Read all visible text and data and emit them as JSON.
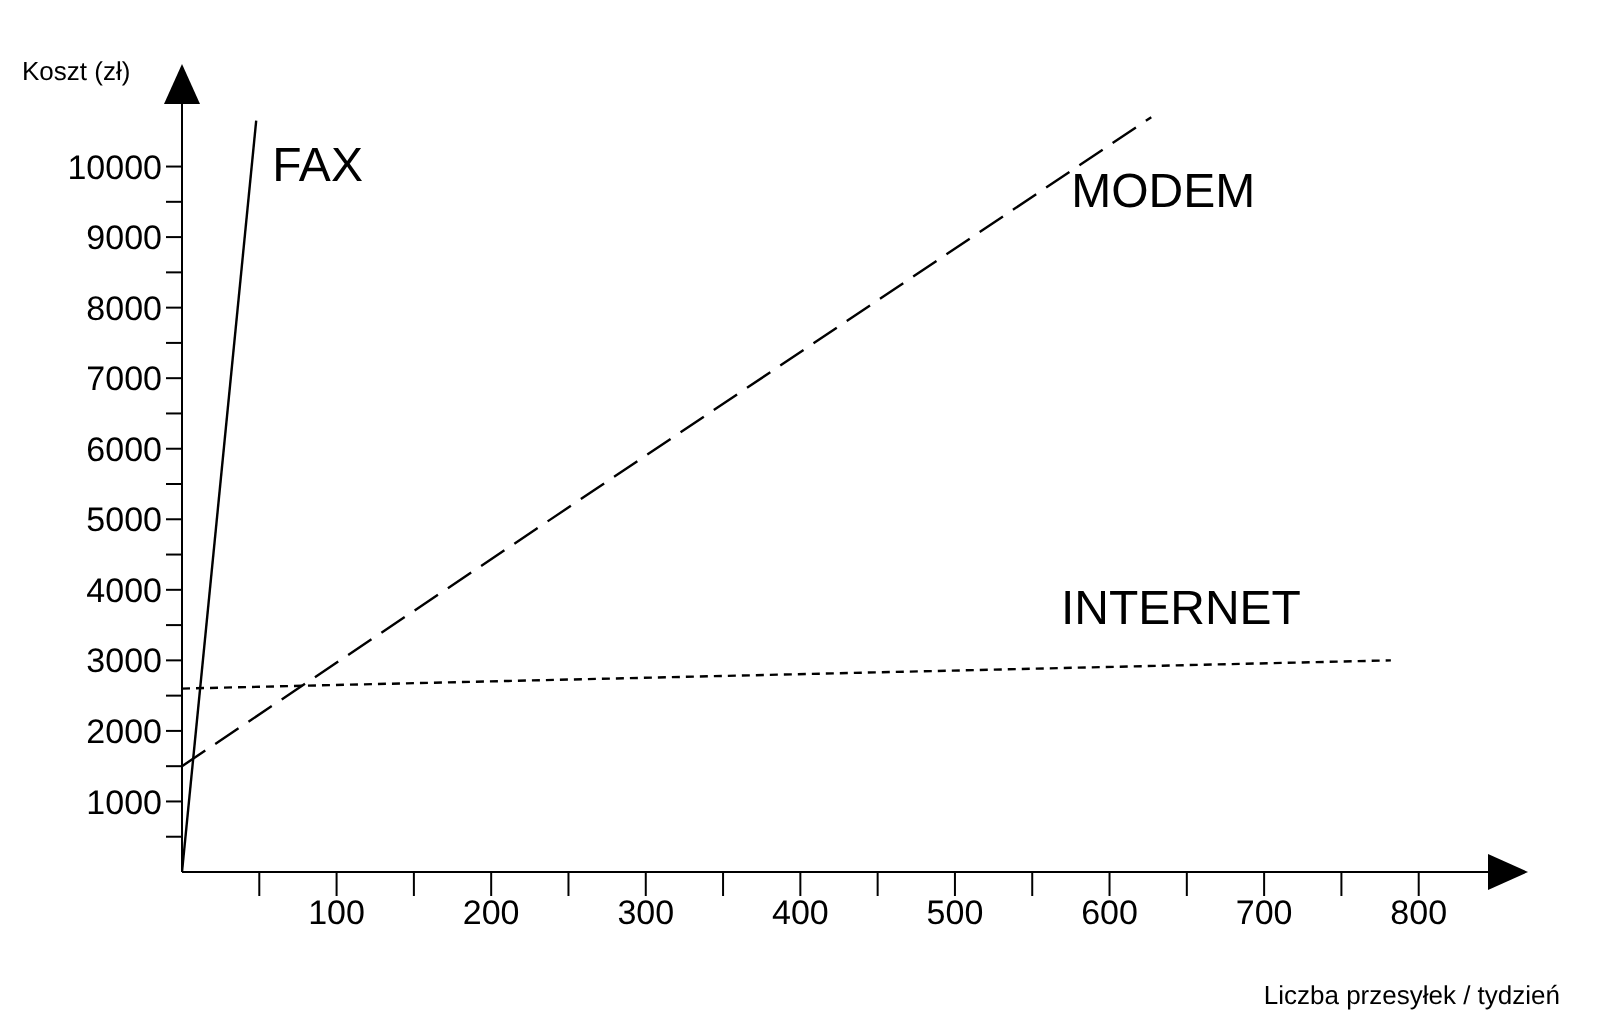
{
  "chart_data": {
    "type": "line",
    "xlabel": "Liczba przesyłek / tydzień",
    "ylabel": "Koszt (zł)",
    "xlim": [
      0,
      850
    ],
    "ylim": [
      0,
      11000
    ],
    "xticks": [
      {
        "value": 50,
        "label": null
      },
      100,
      {
        "value": 150,
        "label": null
      },
      200,
      {
        "value": 250,
        "label": null
      },
      300,
      {
        "value": 350,
        "label": null
      },
      400,
      {
        "value": 450,
        "label": null
      },
      500,
      {
        "value": 550,
        "label": null
      },
      600,
      {
        "value": 650,
        "label": null
      },
      700,
      {
        "value": 750,
        "label": null
      },
      800
    ],
    "yticks": [
      {
        "value": 500,
        "label": null
      },
      1000,
      {
        "value": 1500,
        "label": null
      },
      2000,
      {
        "value": 2500,
        "label": null
      },
      3000,
      {
        "value": 3500,
        "label": null
      },
      4000,
      {
        "value": 4500,
        "label": null
      },
      5000,
      {
        "value": 5500,
        "label": null
      },
      6000,
      {
        "value": 6500,
        "label": null
      },
      7000,
      {
        "value": 7500,
        "label": null
      },
      8000,
      {
        "value": 8500,
        "label": null
      },
      9000,
      {
        "value": 9500,
        "label": null
      },
      10000
    ],
    "grid": false,
    "legend": false,
    "marker": "none",
    "series": [
      {
        "name": "FAX",
        "color": "#000000",
        "line_style": "solid",
        "x": [
          0,
          48
        ],
        "values": [
          0,
          10650
        ]
      },
      {
        "name": "MODEM",
        "color": "#000000",
        "line_style": "dashed",
        "x": [
          0,
          627
        ],
        "values": [
          1500,
          10700
        ]
      },
      {
        "name": "INTERNET",
        "color": "#000000",
        "line_style": "dotted",
        "x": [
          0,
          782
        ],
        "values": [
          2600,
          3000
        ]
      }
    ]
  }
}
